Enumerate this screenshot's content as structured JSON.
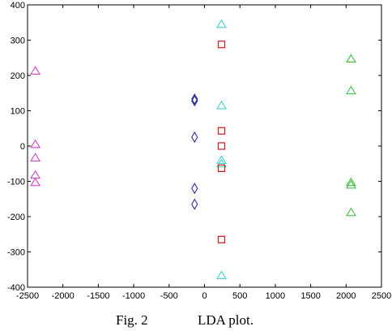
{
  "caption": {
    "figure": "Fig. 2",
    "title": "LDA plot."
  },
  "chart_data": {
    "type": "scatter",
    "xlim": [
      -2500,
      2500
    ],
    "ylim": [
      -400,
      400
    ],
    "xticks": [
      -2500,
      -2000,
      -1500,
      -1000,
      -500,
      0,
      500,
      1000,
      1500,
      2000,
      2500
    ],
    "yticks": [
      -400,
      -300,
      -200,
      -100,
      0,
      100,
      200,
      300,
      400
    ],
    "grid": false,
    "series": [
      {
        "marker": "triangle",
        "color": "#cc33cc",
        "points": [
          [
            -2390,
            213
          ],
          [
            -2390,
            5
          ],
          [
            -2390,
            -33
          ],
          [
            -2390,
            -82
          ],
          [
            -2390,
            -103
          ]
        ]
      },
      {
        "marker": "diamond",
        "color": "#1a1aa0",
        "points": [
          [
            -140,
            133
          ],
          [
            -140,
            128
          ],
          [
            -140,
            25
          ],
          [
            -140,
            -120
          ],
          [
            -140,
            -165
          ]
        ]
      },
      {
        "marker": "triangle",
        "color": "#33cccc",
        "points": [
          [
            240,
            345
          ],
          [
            240,
            115
          ],
          [
            240,
            -40
          ],
          [
            240,
            -50
          ],
          [
            240,
            -367
          ]
        ]
      },
      {
        "marker": "square",
        "color": "#cc1a1a",
        "points": [
          [
            240,
            288
          ],
          [
            240,
            43
          ],
          [
            240,
            0
          ],
          [
            240,
            -63
          ],
          [
            240,
            -265
          ]
        ]
      },
      {
        "marker": "triangle",
        "color": "#33bb33",
        "points": [
          [
            2070,
            247
          ],
          [
            2070,
            157
          ],
          [
            2070,
            -103
          ],
          [
            2070,
            -110
          ],
          [
            2070,
            -188
          ]
        ]
      }
    ]
  }
}
